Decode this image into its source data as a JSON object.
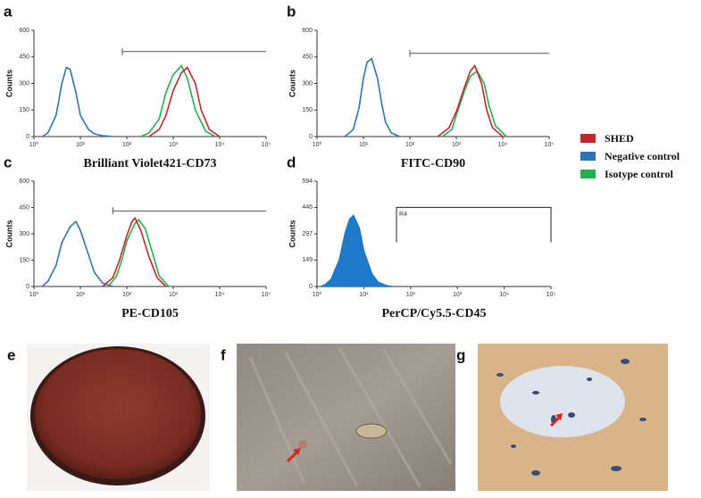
{
  "chart_data": [
    {
      "type": "line",
      "panel": "a",
      "x_label": "Brilliant Violet421-CD73",
      "y_label": "Counts",
      "log_x": true,
      "xlim": [
        1,
        100000
      ],
      "xticks": [
        {
          "value": 1,
          "label": "10⁰"
        },
        {
          "value": 10,
          "label": "10¹"
        },
        {
          "value": 100,
          "label": "10²"
        },
        {
          "value": 1000,
          "label": "10³"
        },
        {
          "value": 10000,
          "label": "10⁴"
        },
        {
          "value": 100000,
          "label": "10⁵"
        }
      ],
      "ylim": [
        0,
        600
      ],
      "yticks": [
        0,
        150,
        300,
        450,
        600
      ],
      "gate": {
        "x": [
          80,
          100000
        ],
        "y": 480
      },
      "series": [
        {
          "name": "Negative control",
          "color": "#2e75b6",
          "x": [
            1.5,
            2,
            3,
            4,
            5,
            6,
            8,
            10,
            15,
            20,
            30,
            50
          ],
          "values": [
            0,
            20,
            120,
            300,
            390,
            380,
            250,
            120,
            40,
            15,
            5,
            0
          ]
        },
        {
          "name": "Isotype control",
          "color": "#22b14c",
          "x": [
            200,
            300,
            500,
            700,
            1000,
            1500,
            2000,
            3000,
            5000,
            8000
          ],
          "values": [
            0,
            20,
            100,
            250,
            350,
            400,
            330,
            150,
            30,
            0
          ]
        },
        {
          "name": "SHED",
          "color": "#c0272d",
          "x": [
            300,
            500,
            700,
            1000,
            1500,
            2000,
            3000,
            4000,
            6000,
            10000
          ],
          "values": [
            0,
            40,
            120,
            260,
            360,
            390,
            300,
            150,
            40,
            0
          ]
        }
      ]
    },
    {
      "type": "line",
      "panel": "b",
      "x_label": "FITC-CD90",
      "y_label": "Counts",
      "log_x": true,
      "xlim": [
        1,
        100000
      ],
      "xticks": [
        {
          "value": 1,
          "label": "10⁰"
        },
        {
          "value": 10,
          "label": "10¹"
        },
        {
          "value": 100,
          "label": "10²"
        },
        {
          "value": 1000,
          "label": "10³"
        },
        {
          "value": 10000,
          "label": "10⁴"
        },
        {
          "value": 100000,
          "label": "10⁵"
        }
      ],
      "ylim": [
        0,
        600
      ],
      "yticks": [
        0,
        150,
        300,
        450,
        600
      ],
      "gate": {
        "x": [
          100,
          100000
        ],
        "y": 470
      },
      "series": [
        {
          "color": "#2e75b6",
          "x": [
            4,
            6,
            8,
            10,
            12,
            15,
            20,
            25,
            30,
            40,
            60
          ],
          "values": [
            0,
            40,
            160,
            330,
            420,
            440,
            330,
            180,
            80,
            20,
            0
          ]
        },
        {
          "color": "#22b14c",
          "x": [
            500,
            800,
            1000,
            1500,
            2000,
            2800,
            4000,
            5000,
            7000,
            12000
          ],
          "values": [
            0,
            40,
            120,
            260,
            340,
            370,
            300,
            180,
            60,
            0
          ]
        },
        {
          "color": "#c0272d",
          "x": [
            400,
            700,
            1000,
            1500,
            2000,
            2500,
            3500,
            4500,
            6000,
            10000
          ],
          "values": [
            0,
            50,
            140,
            280,
            370,
            400,
            300,
            150,
            50,
            0
          ]
        }
      ]
    },
    {
      "type": "line",
      "panel": "c",
      "x_label": "PE-CD105",
      "y_label": "Counts",
      "log_x": true,
      "xlim": [
        1,
        100000
      ],
      "xticks": [
        {
          "value": 1,
          "label": "10⁰"
        },
        {
          "value": 10,
          "label": "10¹"
        },
        {
          "value": 100,
          "label": "10²"
        },
        {
          "value": 1000,
          "label": "10³"
        },
        {
          "value": 10000,
          "label": "10⁴"
        },
        {
          "value": 100000,
          "label": "10⁵"
        }
      ],
      "ylim": [
        0,
        600
      ],
      "yticks": [
        0,
        150,
        300,
        450,
        600
      ],
      "gate": {
        "x": [
          50,
          100000
        ],
        "y": 430
      },
      "series": [
        {
          "color": "#2e75b6",
          "x": [
            1.5,
            2,
            3,
            4,
            6,
            8,
            10,
            15,
            20,
            30,
            50
          ],
          "values": [
            0,
            30,
            120,
            250,
            340,
            370,
            320,
            180,
            80,
            20,
            0
          ]
        },
        {
          "color": "#22b14c",
          "x": [
            40,
            60,
            80,
            100,
            150,
            180,
            250,
            350,
            500,
            800
          ],
          "values": [
            0,
            60,
            160,
            260,
            360,
            380,
            330,
            200,
            60,
            0
          ]
        },
        {
          "color": "#c0272d",
          "x": [
            30,
            50,
            70,
            100,
            130,
            150,
            200,
            300,
            450,
            700
          ],
          "values": [
            0,
            50,
            150,
            290,
            370,
            390,
            320,
            170,
            50,
            0
          ]
        }
      ]
    },
    {
      "type": "line",
      "panel": "d",
      "x_label": "PerCP/Cy5.5-CD45",
      "y_label": "Counts",
      "log_x": true,
      "xlim": [
        1,
        100000
      ],
      "xticks": [
        {
          "value": 1,
          "label": "10⁰"
        },
        {
          "value": 10,
          "label": "10¹"
        },
        {
          "value": 100,
          "label": "10²"
        },
        {
          "value": 1000,
          "label": "10³"
        },
        {
          "value": 10000,
          "label": "10⁴"
        },
        {
          "value": 100000,
          "label": "10⁵"
        }
      ],
      "ylim": [
        0,
        594
      ],
      "yticks": [
        0,
        149,
        297,
        446,
        594
      ],
      "gate": {
        "x": [
          50,
          100000
        ],
        "y": [
          250,
          446
        ],
        "label": "R4"
      },
      "series": [
        {
          "color": "#1f78c8",
          "fill": true,
          "x": [
            1.2,
            1.5,
            2,
            3,
            4,
            5,
            6,
            8,
            10,
            15,
            20,
            30,
            40
          ],
          "values": [
            0,
            10,
            40,
            150,
            300,
            380,
            400,
            330,
            200,
            70,
            25,
            5,
            0
          ]
        }
      ]
    }
  ],
  "images": [
    {
      "label": "e"
    },
    {
      "label": "f"
    },
    {
      "label": "g"
    }
  ]
}
